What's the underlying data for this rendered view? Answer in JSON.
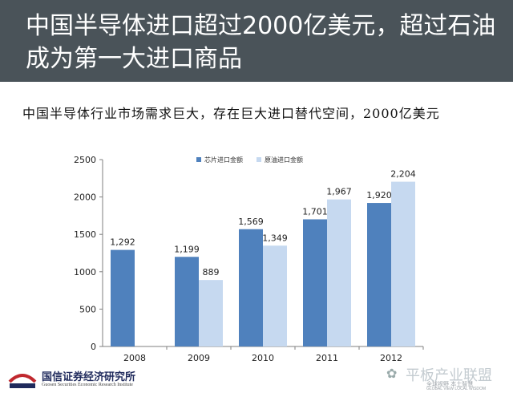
{
  "header": {
    "title": "中国半导体进口超过2000亿美元，超过石油成为第一大进口商品"
  },
  "subtitle": "中国半导体行业市场需求巨大，存在巨大进口替代空间，2000亿美元",
  "footer": {
    "org_name": "国信证券经济研究所",
    "org_name_en": "Guosen Securities Economic Research Institute"
  },
  "watermark": {
    "text": "平板产业联盟",
    "sub_text": "全球视野 本土智慧",
    "sub_text_en": "GLOBAL VIEW LOCAL WISDOM"
  },
  "chart_data": {
    "type": "bar",
    "categories": [
      "2008",
      "2009",
      "2010",
      "2011",
      "2012"
    ],
    "series": [
      {
        "name": "芯片进口金额",
        "values": [
          1292,
          1199,
          1569,
          1701,
          1920
        ],
        "labels": [
          "1,292",
          "1,199",
          "1,569",
          "1,701",
          "1,920"
        ],
        "color": "#4f81bd"
      },
      {
        "name": "原油进口金额",
        "values": [
          null,
          889,
          1349,
          1967,
          2204
        ],
        "labels": [
          "",
          "889",
          "1,349",
          "1,967",
          "2,204"
        ],
        "color": "#c6d9f0"
      }
    ],
    "yticks": [
      "0",
      "500",
      "1000",
      "1500",
      "2000",
      "2500"
    ],
    "ylim": [
      0,
      2500
    ],
    "grid": false,
    "legend_position": "top-center"
  }
}
